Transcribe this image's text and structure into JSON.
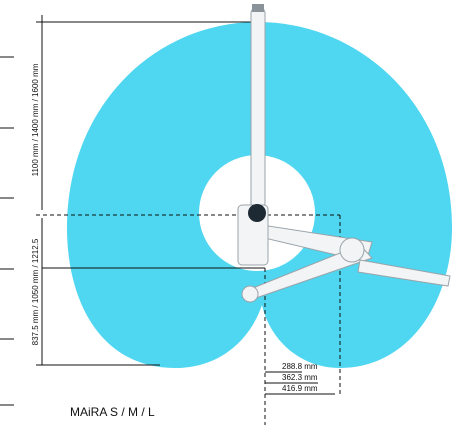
{
  "dimensions": {
    "reach_heights": "1100 mm / 1400 mm / 1600 mm",
    "base_heights": "837.5 mm / 1050 mm / 1212.5",
    "offsets": [
      "288.8 mm",
      "362.3 mm",
      "416.9 mm"
    ]
  },
  "label": "MAiRA S / M / L"
}
